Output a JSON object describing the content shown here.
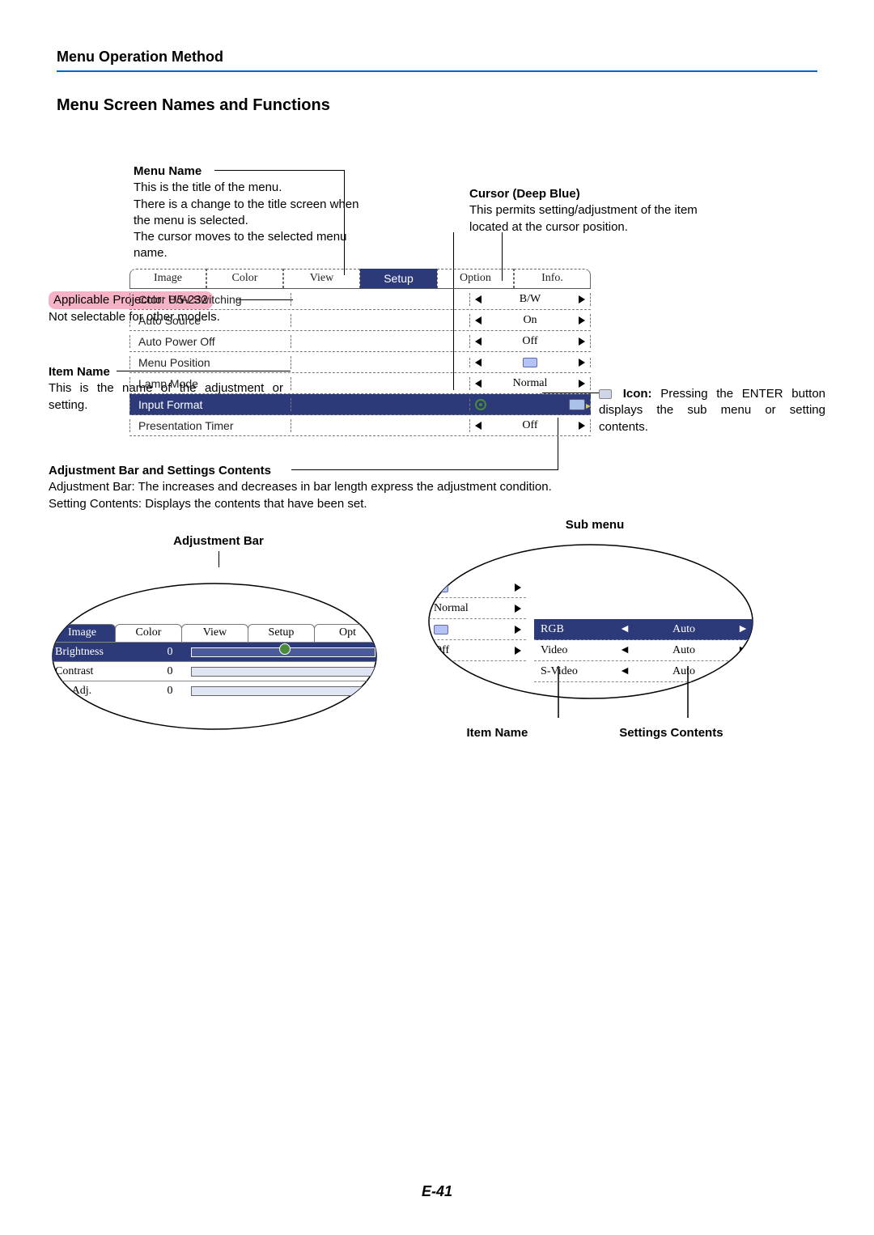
{
  "page_header": "Menu Operation Method",
  "section_title": "Menu Screen Names and Functions",
  "page_number": "E-41",
  "callouts": {
    "menu_name": {
      "label": "Menu Name",
      "lines": [
        "This is the title of the menu.",
        "There is a change to the title screen when the menu is selected.",
        "The cursor moves to the selected menu name."
      ]
    },
    "cursor": {
      "label": "Cursor (Deep Blue)",
      "lines": [
        "This permits setting/adjustment of the item located at the cursor position."
      ]
    },
    "projector": {
      "highlight": "Applicable Projector: U5-232",
      "line": "Not selectable for other models."
    },
    "item_name": {
      "label": "Item Name",
      "line": "This is the name of the adjustment or setting."
    },
    "icon": {
      "label": "Icon:",
      "line": "Pressing the ENTER button displays the sub menu or setting contents."
    },
    "adj_bar_settings": {
      "label": "Adjustment Bar and Settings Contents",
      "lines": [
        "Adjustment Bar: The increases and decreases in bar length express the adjustment condition.",
        "Setting Contents: Displays the contents that have been set."
      ]
    }
  },
  "main_menu": {
    "tabs": [
      "Image",
      "Color",
      "View",
      "Setup",
      "Option",
      "Info."
    ],
    "active_tab_index": 3,
    "rows": [
      {
        "name": "Color B/W Switching",
        "value": "B/W",
        "type": "text"
      },
      {
        "name": "Auto Source",
        "value": "On",
        "type": "text"
      },
      {
        "name": "Auto Power Off",
        "value": "Off",
        "type": "text"
      },
      {
        "name": "Menu Position",
        "value": "",
        "type": "icon"
      },
      {
        "name": "Lamp Mode",
        "value": "Normal",
        "type": "text"
      },
      {
        "name": "Input Format",
        "value": "",
        "type": "enter",
        "selected": true
      },
      {
        "name": "Presentation Timer",
        "value": "Off",
        "type": "text"
      }
    ],
    "selection_color": "#2c3a7a"
  },
  "fig2": {
    "caption": "Adjustment Bar",
    "tabs": [
      "Image",
      "Color",
      "View",
      "Setup",
      "Opt"
    ],
    "active_tab_index": 0,
    "rows": [
      {
        "name": "Brightness",
        "value": "0",
        "selected": true,
        "has_knob": true
      },
      {
        "name": "Contrast",
        "value": "0"
      },
      {
        "name": "ure Adj.",
        "value": "0"
      }
    ]
  },
  "fig3": {
    "caption": "Sub menu",
    "left_rows": [
      {
        "name": "",
        "icon": true
      },
      {
        "name": "Normal"
      },
      {
        "name": "",
        "icon": true
      },
      {
        "name": "Off"
      }
    ],
    "right_rows": [
      {
        "name": "RGB",
        "value": "Auto",
        "selected": true
      },
      {
        "name": "Video",
        "value": "Auto"
      },
      {
        "name": "S-Video",
        "value": "Auto"
      }
    ],
    "bottom_labels": {
      "item": "Item Name",
      "settings": "Settings Contents"
    }
  }
}
